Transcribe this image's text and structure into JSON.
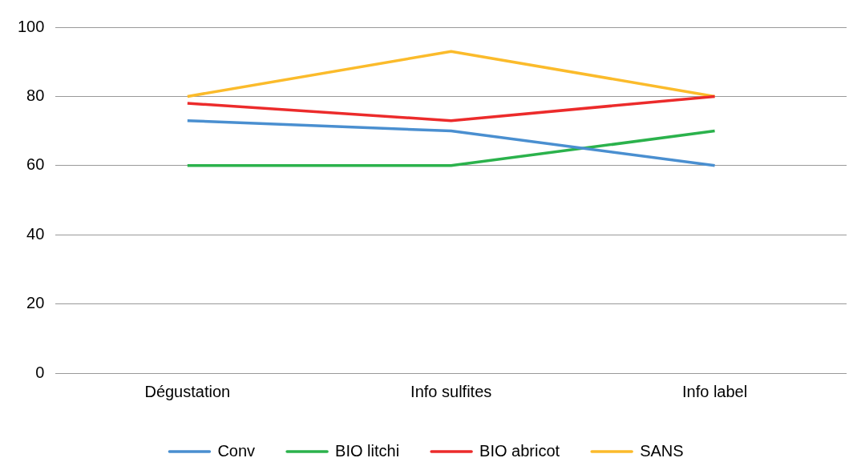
{
  "chart_data": {
    "type": "line",
    "categories": [
      "Dégustation",
      "Info sulfites",
      "Info label"
    ],
    "series": [
      {
        "name": "Conv",
        "color": "#4a8fd0",
        "values": [
          73,
          70,
          60
        ]
      },
      {
        "name": "BIO litchi",
        "color": "#2bb24c",
        "values": [
          60,
          60,
          70
        ]
      },
      {
        "name": "BIO abricot",
        "color": "#ec2b2b",
        "values": [
          78,
          73,
          80
        ]
      },
      {
        "name": "SANS",
        "color": "#fbbb2b",
        "values": [
          80,
          93,
          80
        ]
      }
    ],
    "ylim": [
      0,
      100
    ],
    "yticks": [
      0,
      20,
      40,
      60,
      80,
      100
    ],
    "grid": "y",
    "legend": "bottom",
    "marker": "none",
    "line_style": "solid"
  }
}
